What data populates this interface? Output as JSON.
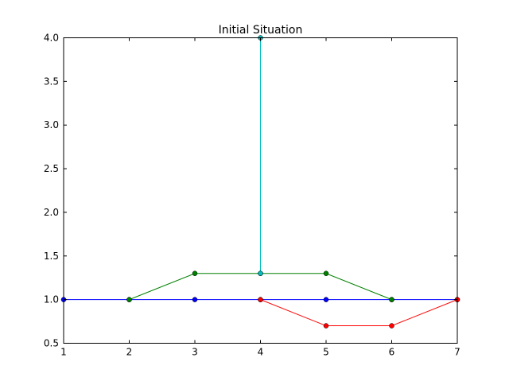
{
  "chart_data": {
    "type": "line",
    "title": "Initial Situation",
    "xlabel": "",
    "ylabel": "",
    "xlim": [
      1,
      7
    ],
    "ylim": [
      0.5,
      4.0
    ],
    "x_ticks": [
      "1",
      "2",
      "3",
      "4",
      "5",
      "6",
      "7"
    ],
    "y_ticks": [
      "0.5",
      "1.0",
      "1.5",
      "2.0",
      "2.5",
      "3.0",
      "3.5",
      "4.0"
    ],
    "grid": false,
    "legend": "none",
    "series": [
      {
        "color": "#0000ff",
        "marker": "circle",
        "points": [
          [
            1,
            1.0
          ],
          [
            2,
            1.0
          ],
          [
            3,
            1.0
          ],
          [
            4,
            1.0
          ],
          [
            5,
            1.0
          ],
          [
            6,
            1.0
          ],
          [
            7,
            1.0
          ]
        ]
      },
      {
        "color": "#008000",
        "marker": "circle",
        "points": [
          [
            2,
            1.0
          ],
          [
            3,
            1.3
          ],
          [
            4,
            1.3
          ],
          [
            5,
            1.3
          ],
          [
            6,
            1.0
          ]
        ]
      },
      {
        "color": "#ff0000",
        "marker": "circle",
        "points": [
          [
            4,
            1.0
          ],
          [
            5,
            0.7
          ],
          [
            6,
            0.7
          ],
          [
            7,
            1.0
          ]
        ]
      },
      {
        "color": "#00bfbf",
        "marker": "circle",
        "points": [
          [
            4,
            1.3
          ],
          [
            4,
            4.0
          ]
        ]
      }
    ]
  }
}
